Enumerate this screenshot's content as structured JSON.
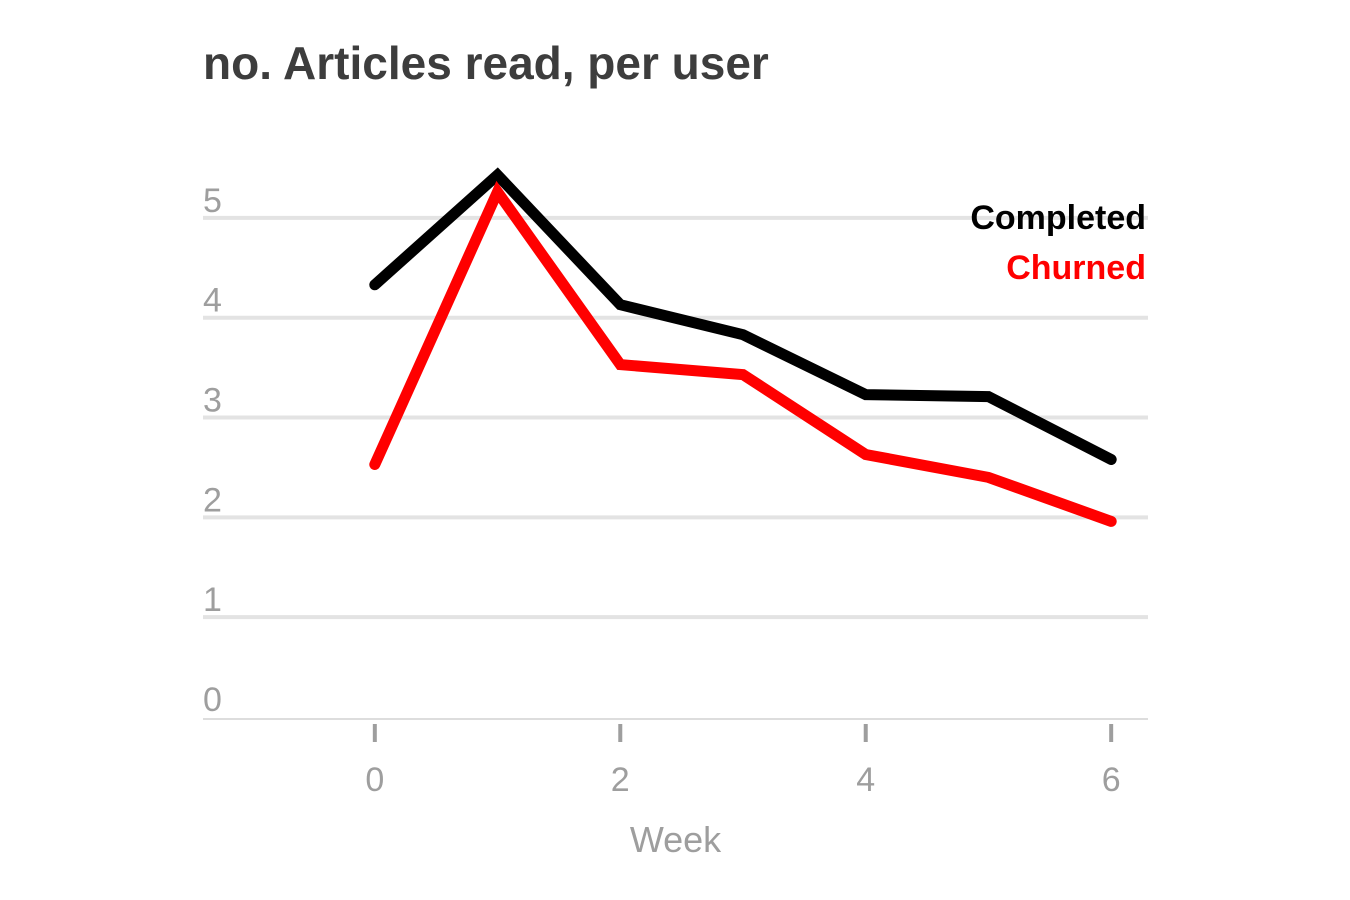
{
  "chart_data": {
    "type": "line",
    "title": "no. Articles read, per user",
    "xlabel": "Week",
    "ylabel": "",
    "x": [
      0,
      1,
      2,
      3,
      4,
      5,
      6
    ],
    "xlim": [
      -1.4,
      6.3
    ],
    "ylim": [
      0,
      5.6
    ],
    "x_ticks": [
      0,
      2,
      4,
      6
    ],
    "y_ticks": [
      0,
      1,
      2,
      3,
      4,
      5
    ],
    "grid": true,
    "legend_position": "top-right",
    "series": [
      {
        "name": "Completed",
        "color": "#000000",
        "values": [
          4.35,
          5.45,
          4.15,
          3.85,
          3.25,
          3.23,
          2.6
        ]
      },
      {
        "name": "Churned",
        "color": "#ff0000",
        "values": [
          2.55,
          5.28,
          3.55,
          3.45,
          2.65,
          2.42,
          1.98
        ]
      }
    ]
  }
}
